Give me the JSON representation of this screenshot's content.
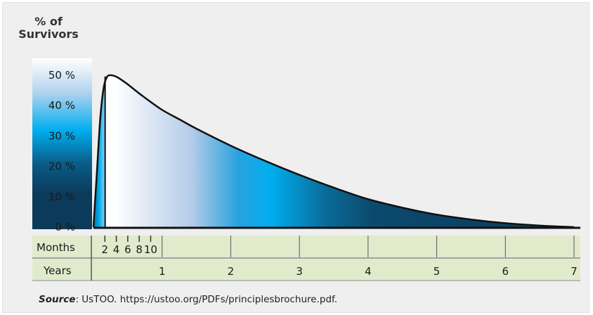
{
  "chart_data": {
    "type": "area",
    "ylabel": [
      "% of",
      "Survivors"
    ],
    "y_tick_labels": [
      "0 %",
      "10 %",
      "20 %",
      "30 %",
      "40 %",
      "50 %"
    ],
    "ylim": [
      0,
      50
    ],
    "xlim_years": [
      0,
      7
    ],
    "x_years": [
      0,
      0.05,
      0.1,
      0.15,
      0.2,
      0.25,
      0.3,
      0.35,
      0.4,
      0.5,
      0.6,
      0.75,
      1,
      1.25,
      1.5,
      2,
      2.5,
      3,
      3.5,
      4,
      4.5,
      5,
      5.5,
      6,
      6.5,
      7
    ],
    "y_percent": [
      0,
      18,
      36,
      46,
      49.5,
      50,
      49.8,
      49.3,
      48.6,
      47,
      45.2,
      42.6,
      38.6,
      35.5,
      32.4,
      26.8,
      21.8,
      17.2,
      13,
      9.2,
      6.4,
      4.1,
      2.5,
      1.3,
      0.5,
      0
    ],
    "highlight_years": [
      0.17,
      0.35
    ],
    "months_row_label": "Months",
    "month_ticks": [
      {
        "month": 2,
        "label": "2"
      },
      {
        "month": 4,
        "label": "4"
      },
      {
        "month": 6,
        "label": "6"
      },
      {
        "month": 8,
        "label": "8"
      },
      {
        "month": 10,
        "label": "10"
      }
    ],
    "years_row_label": "Years",
    "year_ticks": [
      {
        "year": 1,
        "label": "1"
      },
      {
        "year": 2,
        "label": "2"
      },
      {
        "year": 3,
        "label": "3"
      },
      {
        "year": 4,
        "label": "4"
      },
      {
        "year": 5,
        "label": "5"
      },
      {
        "year": 6,
        "label": "6"
      },
      {
        "year": 7,
        "label": "7"
      }
    ],
    "colors": {
      "background": "#efefef",
      "gradient_dark": "#0a3a5c",
      "gradient_cyan": "#00aeef",
      "gradient_light": "#ffffff",
      "axis_rows": "#e1ebcc",
      "curve": "#111111"
    }
  },
  "source": {
    "label": "Source",
    "text": ": UsTOO. https://ustoo.org/PDFs/principlesbrochure.pdf."
  }
}
